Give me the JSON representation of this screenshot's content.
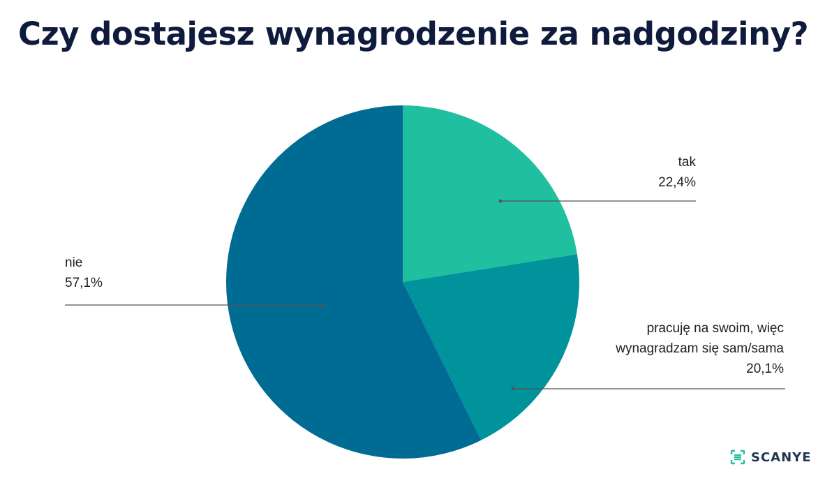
{
  "title": "Czy dostajesz wynagrodzenie za nadgodziny?",
  "chart_data": {
    "type": "pie",
    "title": "Czy dostajesz wynagrodzenie za nadgodziny?",
    "slices": [
      {
        "label": "tak",
        "value": 22.4,
        "value_label": "22,4%",
        "color": "#1fbf9f"
      },
      {
        "label": "pracuję na swoim, więc wynagradzam się sam/sama",
        "label_lines": [
          "pracuję na swoim, więc",
          "wynagradzam się sam/sama"
        ],
        "value": 20.1,
        "value_label": "20,1%",
        "color": "#00939b"
      },
      {
        "label": "nie",
        "value": 57.1,
        "value_label": "57,1%",
        "color": "#006b93"
      }
    ],
    "start": "12 o'clock",
    "direction": "clockwise"
  },
  "brand": {
    "name": "SCANYE",
    "color": "#1fbf9f",
    "text_color": "#1f3550"
  },
  "colors": {
    "title": "#0f1b3d",
    "label": "#1f1f1f",
    "leader": "#555555"
  }
}
